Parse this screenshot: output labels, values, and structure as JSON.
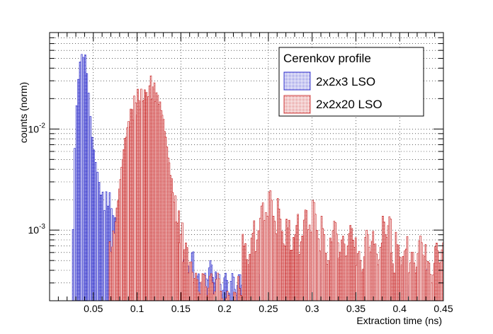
{
  "chart_data": {
    "type": "histogram",
    "xlabel": "Extraction time (ns)",
    "ylabel": "counts (norm)",
    "xlim": [
      0,
      0.45
    ],
    "ylim": [
      0.0002,
      0.09
    ],
    "yscale": "log",
    "grid": true,
    "legend_position": "top-right",
    "legend_title": "Cerenkov profile",
    "x_ticks": [
      {
        "v": 0.05,
        "label": "0.05"
      },
      {
        "v": 0.1,
        "label": "0.1"
      },
      {
        "v": 0.15,
        "label": "0.15"
      },
      {
        "v": 0.2,
        "label": "0.2"
      },
      {
        "v": 0.25,
        "label": "0.25"
      },
      {
        "v": 0.3,
        "label": "0.3"
      },
      {
        "v": 0.35,
        "label": "0.35"
      },
      {
        "v": 0.4,
        "label": "0.4"
      },
      {
        "v": 0.45,
        "label": "0.45"
      }
    ],
    "y_ticks": [
      {
        "v": 0.01,
        "base": "10",
        "exp": "-2"
      },
      {
        "v": 0.001,
        "base": "10",
        "exp": "-3"
      }
    ],
    "bin_width": 0.0015,
    "series": [
      {
        "name": "2x2x3 LSO",
        "color": "#3333cc",
        "fill": "#dcdcf5",
        "points": [
          [
            0.024,
            0.0002
          ],
          [
            0.026,
            0.0012
          ],
          [
            0.028,
            0.0085
          ],
          [
            0.03,
            0.022
          ],
          [
            0.032,
            0.035
          ],
          [
            0.034,
            0.044
          ],
          [
            0.036,
            0.046
          ],
          [
            0.038,
            0.041
          ],
          [
            0.04,
            0.045
          ],
          [
            0.042,
            0.033
          ],
          [
            0.044,
            0.025
          ],
          [
            0.046,
            0.017
          ],
          [
            0.048,
            0.011
          ],
          [
            0.05,
            0.0075
          ],
          [
            0.052,
            0.0048
          ],
          [
            0.054,
            0.0033
          ],
          [
            0.056,
            0.0024
          ],
          [
            0.058,
            0.0018
          ],
          [
            0.06,
            0.0021
          ],
          [
            0.062,
            0.0016
          ],
          [
            0.064,
            0.0029
          ],
          [
            0.066,
            0.0023
          ],
          [
            0.068,
            0.003
          ],
          [
            0.07,
            0.0018
          ],
          [
            0.072,
            0.0013
          ],
          [
            0.074,
            0.0011
          ],
          [
            0.078,
            0.0009
          ],
          [
            0.082,
            0.0012
          ],
          [
            0.086,
            0.0007
          ],
          [
            0.09,
            0.001
          ],
          [
            0.095,
            0.0006
          ],
          [
            0.1,
            0.0009
          ],
          [
            0.105,
            0.0005
          ],
          [
            0.11,
            0.0008
          ],
          [
            0.115,
            0.0005
          ],
          [
            0.12,
            0.0007
          ],
          [
            0.125,
            0.0004
          ],
          [
            0.13,
            0.0006
          ],
          [
            0.14,
            0.0004
          ],
          [
            0.15,
            0.0005
          ],
          [
            0.165,
            0.0003
          ],
          [
            0.18,
            0.0004
          ],
          [
            0.19,
            0.0003
          ],
          [
            0.26,
            0.0003
          ],
          [
            0.3,
            0.0003
          ],
          [
            0.39,
            0.0003
          ],
          [
            0.43,
            0.00035
          ]
        ]
      },
      {
        "name": "2x2x20 LSO",
        "color": "#cc3333",
        "fill": "#f6dede",
        "points": [
          [
            0.068,
            0.0008
          ],
          [
            0.072,
            0.0012
          ],
          [
            0.076,
            0.0022
          ],
          [
            0.08,
            0.004
          ],
          [
            0.084,
            0.0068
          ],
          [
            0.088,
            0.0095
          ],
          [
            0.092,
            0.013
          ],
          [
            0.096,
            0.017
          ],
          [
            0.1,
            0.021
          ],
          [
            0.104,
            0.024
          ],
          [
            0.108,
            0.028
          ],
          [
            0.11,
            0.03
          ],
          [
            0.112,
            0.0275
          ],
          [
            0.116,
            0.023
          ],
          [
            0.12,
            0.0185
          ],
          [
            0.124,
            0.015
          ],
          [
            0.128,
            0.011
          ],
          [
            0.132,
            0.0068
          ],
          [
            0.136,
            0.0042
          ],
          [
            0.14,
            0.0025
          ],
          [
            0.144,
            0.0015
          ],
          [
            0.148,
            0.001
          ],
          [
            0.152,
            0.0006
          ],
          [
            0.158,
            0.0004
          ],
          [
            0.165,
            0.0003
          ],
          [
            0.175,
            0.0003
          ],
          [
            0.195,
            0.0002
          ],
          [
            0.215,
            0.0003
          ],
          [
            0.22,
            0.0009
          ],
          [
            0.225,
            0.0006
          ],
          [
            0.23,
            0.0011
          ],
          [
            0.235,
            0.0008
          ],
          [
            0.24,
            0.0015
          ],
          [
            0.245,
            0.0012
          ],
          [
            0.25,
            0.002
          ],
          [
            0.255,
            0.0011
          ],
          [
            0.26,
            0.0017
          ],
          [
            0.265,
            0.0009
          ],
          [
            0.27,
            0.0014
          ],
          [
            0.275,
            0.0008
          ],
          [
            0.28,
            0.0012
          ],
          [
            0.285,
            0.0007
          ],
          [
            0.29,
            0.0013
          ],
          [
            0.295,
            0.0009
          ],
          [
            0.3,
            0.0016
          ],
          [
            0.305,
            0.0008
          ],
          [
            0.31,
            0.0012
          ],
          [
            0.315,
            0.0006
          ],
          [
            0.32,
            0.001
          ],
          [
            0.33,
            0.0007
          ],
          [
            0.34,
            0.0009
          ],
          [
            0.35,
            0.0005
          ],
          [
            0.36,
            0.0008
          ],
          [
            0.37,
            0.0006
          ],
          [
            0.38,
            0.0011
          ],
          [
            0.39,
            0.0005
          ],
          [
            0.395,
            0.0009
          ],
          [
            0.4,
            0.0006
          ],
          [
            0.405,
            0.0008
          ],
          [
            0.41,
            0.0005
          ],
          [
            0.42,
            0.0007
          ],
          [
            0.43,
            0.0004
          ],
          [
            0.44,
            0.0006
          ],
          [
            0.45,
            0.0005
          ]
        ]
      }
    ]
  }
}
